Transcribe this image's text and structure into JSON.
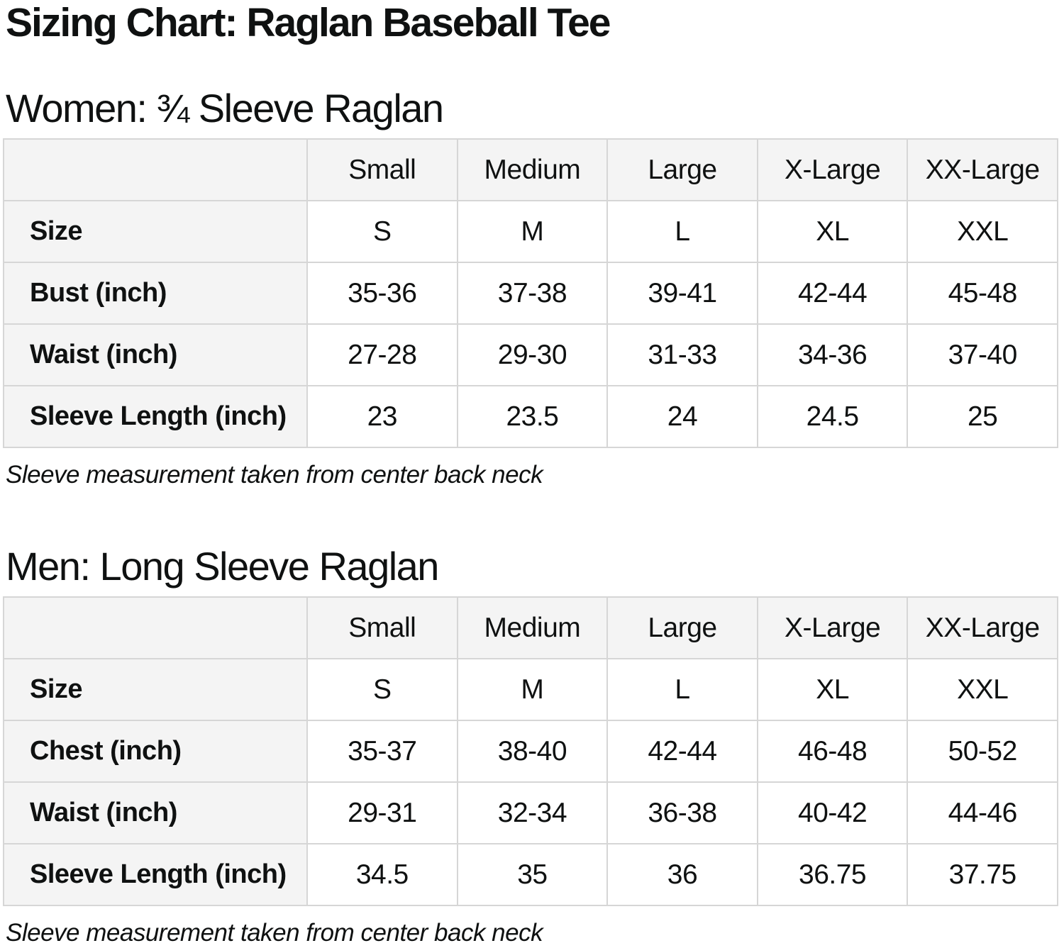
{
  "page": {
    "title": "Sizing Chart: Raglan Baseball Tee"
  },
  "colors": {
    "header_bg": "#f4f4f4",
    "border": "#d6d6d6",
    "text": "#0f1111"
  },
  "sections": [
    {
      "id": "women",
      "heading": "Women: ¾ Sleeve Raglan",
      "note": "Sleeve measurement taken from center back neck",
      "table": {
        "column_headers": [
          "",
          "Small",
          "Medium",
          "Large",
          "X-Large",
          "XX-Large"
        ],
        "rows": [
          {
            "label": "Size",
            "values": [
              "S",
              "M",
              "L",
              "XL",
              "XXL"
            ]
          },
          {
            "label": "Bust (inch)",
            "values": [
              "35-36",
              "37-38",
              "39-41",
              "42-44",
              "45-48"
            ]
          },
          {
            "label": "Waist (inch)",
            "values": [
              "27-28",
              "29-30",
              "31-33",
              "34-36",
              "37-40"
            ]
          },
          {
            "label": "Sleeve Length (inch)",
            "values": [
              "23",
              "23.5",
              "24",
              "24.5",
              "25"
            ]
          }
        ]
      }
    },
    {
      "id": "men",
      "heading": "Men: Long Sleeve Raglan",
      "note": "Sleeve measurement taken from center back neck",
      "table": {
        "column_headers": [
          "",
          "Small",
          "Medium",
          "Large",
          "X-Large",
          "XX-Large"
        ],
        "rows": [
          {
            "label": "Size",
            "values": [
              "S",
              "M",
              "L",
              "XL",
              "XXL"
            ]
          },
          {
            "label": "Chest (inch)",
            "values": [
              "35-37",
              "38-40",
              "42-44",
              "46-48",
              "50-52"
            ]
          },
          {
            "label": "Waist (inch)",
            "values": [
              "29-31",
              "32-34",
              "36-38",
              "40-42",
              "44-46"
            ]
          },
          {
            "label": "Sleeve Length (inch)",
            "values": [
              "34.5",
              "35",
              "36",
              "36.75",
              "37.75"
            ]
          }
        ]
      }
    }
  ]
}
